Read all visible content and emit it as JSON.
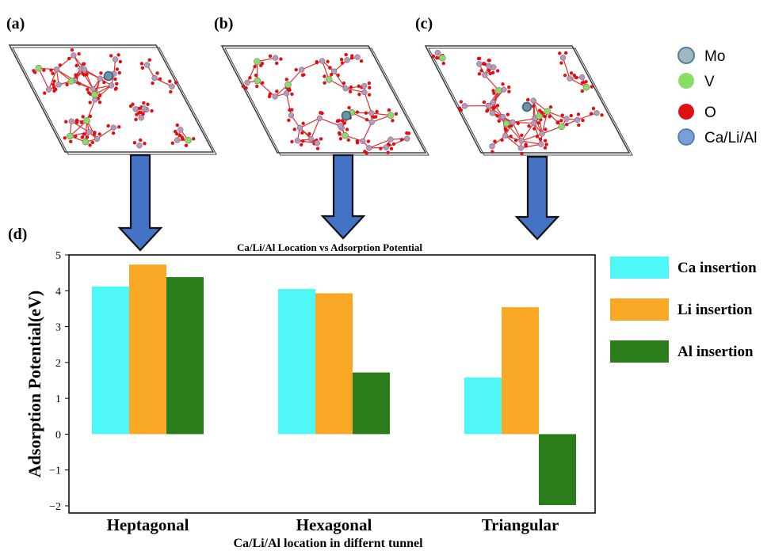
{
  "panels": [
    {
      "label": "(a)"
    },
    {
      "label": "(b)"
    },
    {
      "label": "(c)"
    },
    {
      "label": "(d)"
    }
  ],
  "atom_legend": [
    {
      "label": "Mo",
      "color": "#4f7f96"
    },
    {
      "label": "V",
      "color": "#88dd66"
    },
    {
      "label": "O",
      "color": "#e01010"
    },
    {
      "label": "Ca/Li/Al",
      "color": "#7a9fd8"
    }
  ],
  "colors": {
    "cell_border": "#444444",
    "bond": "#e03030",
    "atom_pink": "#b89ab8",
    "arrow_fill": "#4472c4",
    "arrow_stroke": "#111111"
  },
  "chart_data": {
    "type": "bar",
    "title": "Ca/Li/Al Location vs Adsorption Potential",
    "xlabel": "Ca/Li/Al location in differnt tunnel",
    "ylabel": "Adsorption Potential(eV)",
    "categories": [
      "Heptagonal",
      "Hexagonal",
      "Triangular"
    ],
    "ylim": [
      -2.2,
      5.0
    ],
    "yticks": [
      5,
      4,
      3,
      2,
      1,
      0,
      -1,
      -2
    ],
    "ytick_labels": [
      "5",
      "4",
      "3",
      "2",
      "1",
      "0",
      "−1",
      "−2"
    ],
    "series": [
      {
        "name": "Ca insertion",
        "color": "#4ff7f7",
        "values": [
          4.12,
          4.05,
          1.58
        ]
      },
      {
        "name": "Li insertion",
        "color": "#f9a825",
        "values": [
          4.73,
          3.93,
          3.54
        ]
      },
      {
        "name": "Al insertion",
        "color": "#2a7d1a",
        "values": [
          4.38,
          1.72,
          -1.98
        ]
      }
    ],
    "grid": false,
    "legend_placement": "right"
  }
}
